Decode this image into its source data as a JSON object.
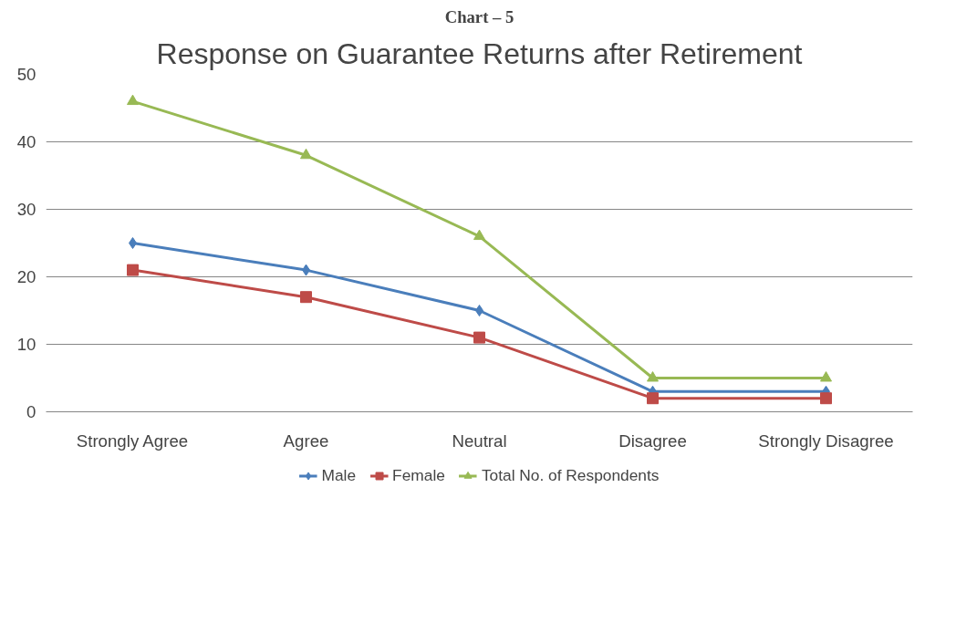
{
  "chart_data": {
    "type": "line",
    "title": "Response on Guarantee Returns after Retirement",
    "annotations": [
      "Chart – 5"
    ],
    "categories": [
      "Strongly Agree",
      "Agree",
      "Neutral",
      "Disagree",
      "Strongly Disagree"
    ],
    "series": [
      {
        "name": "Male",
        "color": "#4a7ebb",
        "marker": "diamond",
        "values": [
          25,
          21,
          15,
          3,
          3
        ]
      },
      {
        "name": "Female",
        "color": "#be4b48",
        "marker": "square",
        "values": [
          21,
          17,
          11,
          2,
          2
        ]
      },
      {
        "name": "Total No. of Respondents",
        "color": "#98b954",
        "marker": "triangle",
        "values": [
          46,
          38,
          26,
          5,
          5
        ]
      }
    ],
    "ylim": [
      0,
      50
    ],
    "yticks": [
      0,
      10,
      20,
      30,
      40,
      50
    ],
    "grid": "y",
    "legend": "bottom",
    "line_style": "solid"
  }
}
